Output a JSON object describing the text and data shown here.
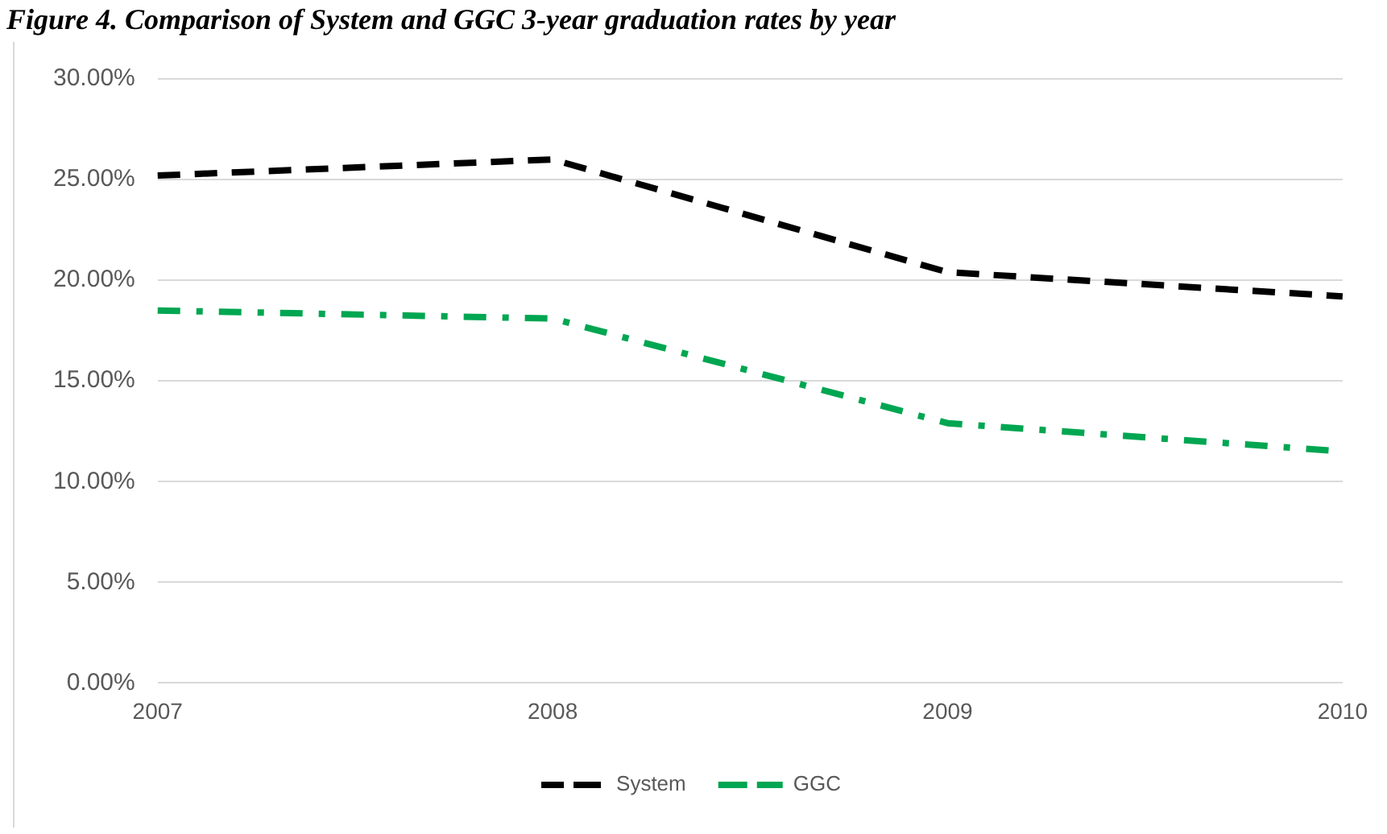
{
  "chart_data": {
    "type": "line",
    "title": "Figure 4. Comparison of System and GGC 3-year graduation rates by year",
    "categories": [
      "2007",
      "2008",
      "2009",
      "2010"
    ],
    "series": [
      {
        "name": "System",
        "color": "#000000",
        "values": [
          25.2,
          26.0,
          20.4,
          19.2
        ],
        "line_style": "dashed"
      },
      {
        "name": "GGC",
        "color": "#00a651",
        "values": [
          18.5,
          18.1,
          12.9,
          11.5
        ],
        "line_style": "dashdot"
      }
    ],
    "ylim": [
      0,
      30
    ],
    "yticks": [
      {
        "value": 0,
        "label": "0.00%"
      },
      {
        "value": 5,
        "label": "5.00%"
      },
      {
        "value": 10,
        "label": "10.00%"
      },
      {
        "value": 15,
        "label": "15.00%"
      },
      {
        "value": 20,
        "label": "20.00%"
      },
      {
        "value": 25,
        "label": "25.00%"
      },
      {
        "value": 30,
        "label": "30.00%"
      }
    ],
    "grid": "y",
    "legend": "bottom",
    "marker": "none"
  }
}
